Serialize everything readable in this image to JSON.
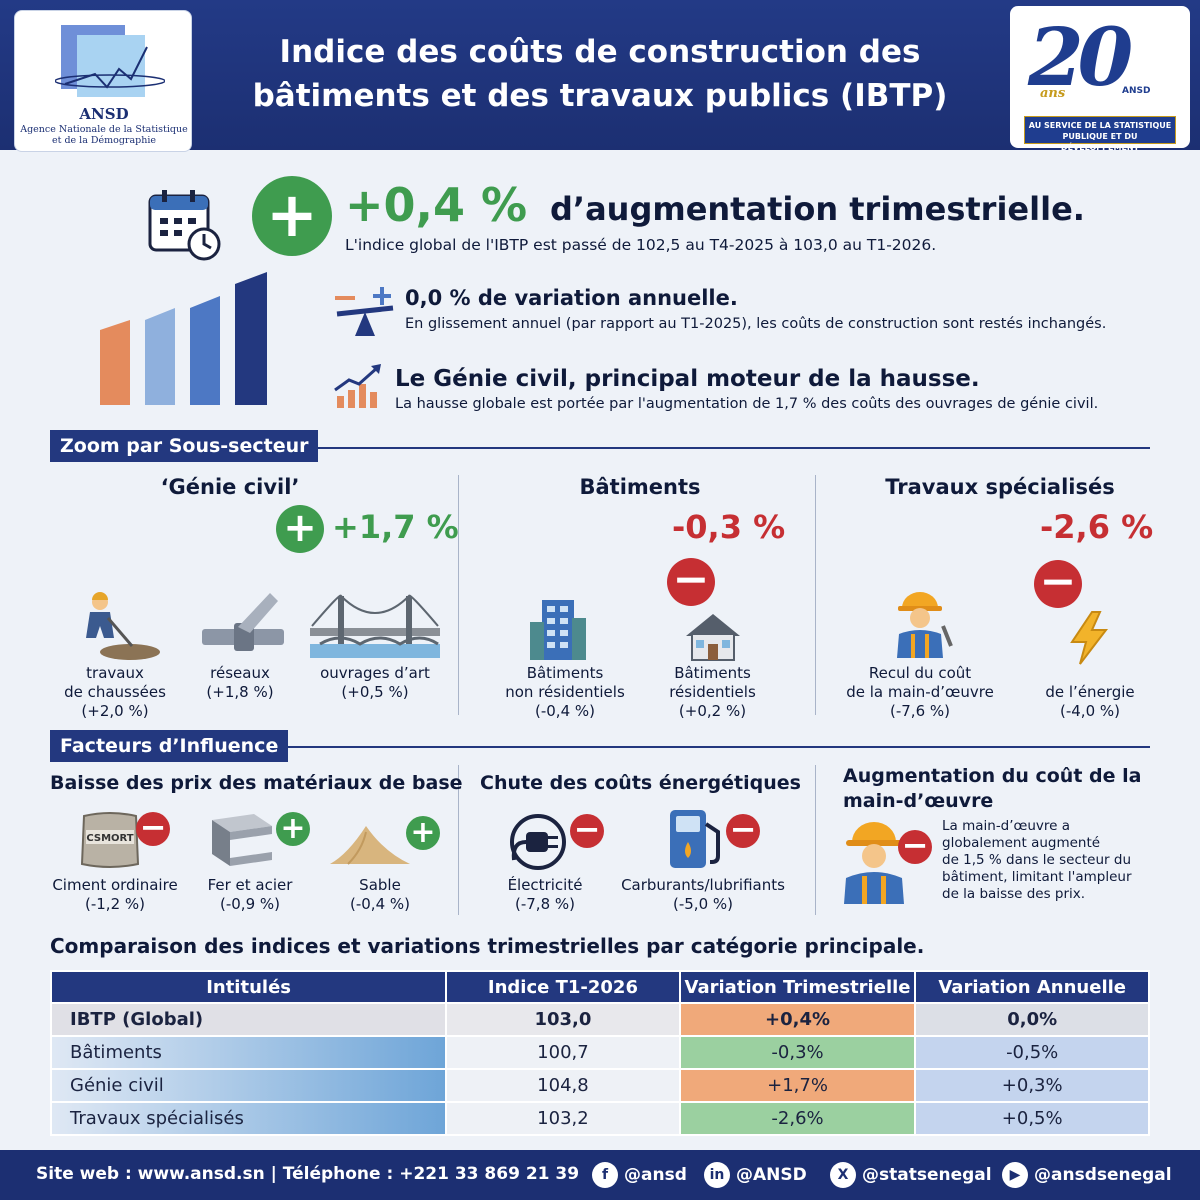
{
  "header": {
    "logo": {
      "acronym": "ANSD",
      "name": "Agence Nationale de la Statistique et de la Démographie"
    },
    "title_line1": "Indice des coûts de construction des",
    "title_line2": "bâtiments et des travaux publics (IBTP)",
    "anniversary": {
      "number": "20",
      "unit": "ans",
      "mini_logo": "ANSD",
      "band": "AU SERVICE DE LA STATISTIQUE PUBLIQUE ET DU DÉVELOPPEMENT"
    }
  },
  "highlights": {
    "quarterly": {
      "value": "+0,4 %",
      "title": "d’augmentation trimestrielle.",
      "subtitle": "L'indice global de l'IBTP est passé de 102,5 au T4-2025 à 103,0 au T1-2026."
    },
    "annual": {
      "title": "0,0 % de variation annuelle.",
      "subtitle": "En glissement annuel (par rapport au T1-2025), les coûts de construction sont restés inchangés."
    },
    "driver": {
      "title": "Le Génie civil, principal moteur de la hausse.",
      "subtitle": "La hausse globale est portée par l'augmentation de 1,7 % des coûts des ouvrages de génie civil."
    }
  },
  "zoom": {
    "heading": "Zoom par Sous-secteur",
    "genie_civil": {
      "title": "‘Génie civil’",
      "value": "+1,7 %",
      "items": [
        {
          "label1": "travaux",
          "label2": "de chaussées",
          "value": "(+2,0 %)"
        },
        {
          "label1": "réseaux",
          "label2": "(+1,8 %)",
          "value": ""
        },
        {
          "label1": "ouvrages d’art",
          "label2": "(+0,5 %)",
          "value": ""
        }
      ]
    },
    "batiments": {
      "title": "Bâtiments",
      "value": "-0,3 %",
      "items": [
        {
          "label1": "Bâtiments",
          "label2": "non résidentiels",
          "value": "(-0,4 %)"
        },
        {
          "label1": "Bâtiments",
          "label2": "résidentiels",
          "value": "(+0,2 %)"
        }
      ]
    },
    "travaux": {
      "title": "Travaux spécialisés",
      "value": "-2,6 %",
      "items": [
        {
          "label1": "Recul du coût",
          "label2": "de la main-d’œuvre",
          "value": "(-7,6 %)"
        },
        {
          "label1": "de l’énergie",
          "label2": "(-4,0 %)",
          "value": ""
        }
      ]
    }
  },
  "factors": {
    "heading": "Facteurs d’Influence",
    "materials": {
      "title": "Baisse des prix des matériaux de base",
      "bag_text": "CSMORT",
      "items": [
        {
          "label": "Ciment ordinaire",
          "value": "(-1,2 %)"
        },
        {
          "label": "Fer et acier",
          "value": "(-0,9 %)"
        },
        {
          "label": "Sable",
          "value": "(-0,4 %)"
        }
      ]
    },
    "energy": {
      "title": "Chute des coûts énergétiques",
      "items": [
        {
          "label": "Électricité",
          "value": "(-7,8 %)"
        },
        {
          "label": "Carburants/lubrifiants",
          "value": "(-5,0 %)"
        }
      ]
    },
    "labour": {
      "title1": "Augmentation du coût de la",
      "title2": "main-d’œuvre",
      "text": [
        "La main-d’œuvre a",
        "globalement augmenté",
        "de 1,5 % dans le secteur du",
        "bâtiment, limitant l'ampleur",
        "de la baisse des prix."
      ]
    }
  },
  "table": {
    "title": "Comparaison des indices et variations trimestrielles par catégorie principale.",
    "headers": [
      "Intitulés",
      "Indice T1-2026",
      "Variation Trimestrielle",
      "Variation Annuelle"
    ],
    "rows": [
      [
        "IBTP (Global)",
        "103,0",
        "+0,4%",
        "0,0%"
      ],
      [
        "Bâtiments",
        "100,7",
        "-0,3%",
        "-0,5%"
      ],
      [
        "Génie civil",
        "104,8",
        "+1,7%",
        "+0,3%"
      ],
      [
        "Travaux spécialisés",
        "103,2",
        "-2,6%",
        "+0,5%"
      ]
    ]
  },
  "footer": {
    "contact": "Site web : www.ansd.sn | Téléphone : +221 33 869 21 39",
    "socials": [
      {
        "icon": "facebook-icon",
        "glyph": "f",
        "handle": "@ansd"
      },
      {
        "icon": "linkedin-icon",
        "glyph": "in",
        "handle": "@ANSD"
      },
      {
        "icon": "x-icon",
        "glyph": "X",
        "handle": "@statsenegal"
      },
      {
        "icon": "youtube-icon",
        "glyph": "▶",
        "handle": "@ansdsenegal"
      }
    ]
  },
  "colors": {
    "navy": "#23387f",
    "green": "#3f9c4f",
    "red": "#c62f33",
    "orange": "#f0a97a"
  }
}
